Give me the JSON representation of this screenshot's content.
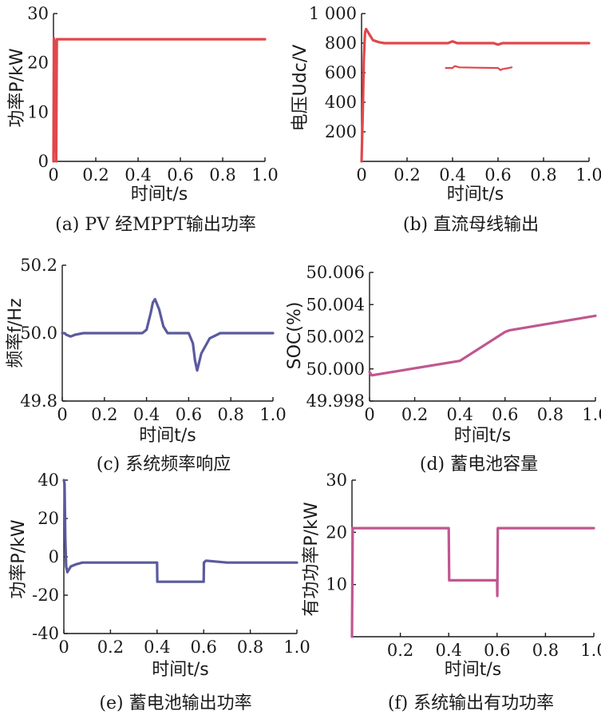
{
  "chart_data": [
    {
      "id": "a",
      "type": "line",
      "caption": "(a) PV 经MPPT输出功率",
      "xlabel": "时间t/s",
      "ylabel": "功率P/kW",
      "xlim": [
        0,
        1.0
      ],
      "ylim": [
        0,
        30
      ],
      "xticks": [
        "0",
        "0.2",
        "0.4",
        "0.6",
        "0.8",
        "1.0"
      ],
      "yticks": [
        "0",
        "10",
        "20",
        "30"
      ],
      "grid": false,
      "color": "#e0474c",
      "series": [
        {
          "x": [
            0,
            0.002,
            0.005,
            0.007,
            0.009,
            0.011,
            0.013,
            0.016,
            0.02,
            0.03,
            0.1,
            0.3,
            0.5,
            0.7,
            0.9,
            1.0
          ],
          "y": [
            0,
            25,
            5,
            24.5,
            2,
            23,
            0,
            24.8,
            24.8,
            24.8,
            24.8,
            24.8,
            24.8,
            24.8,
            24.8,
            24.8
          ]
        }
      ]
    },
    {
      "id": "b",
      "type": "line",
      "caption": "(b) 直流母线输出",
      "xlabel": "时间t/s",
      "ylabel": "电压Udc/V",
      "xlim": [
        0,
        1.0
      ],
      "ylim": [
        0,
        1000
      ],
      "xticks": [
        "0",
        "0.2",
        "0.4",
        "0.6",
        "0.8",
        "1.0"
      ],
      "yticks": [
        "200",
        "400",
        "600",
        "800",
        "1 000"
      ],
      "grid": false,
      "color": "#e0474c",
      "series": [
        {
          "x": [
            0,
            0.005,
            0.01,
            0.015,
            0.02,
            0.03,
            0.05,
            0.08,
            0.1,
            0.2,
            0.38,
            0.4,
            0.42,
            0.5,
            0.58,
            0.6,
            0.62,
            0.7,
            0.8,
            0.9,
            1.0
          ],
          "y": [
            0,
            300,
            700,
            870,
            895,
            870,
            820,
            805,
            800,
            800,
            800,
            812,
            800,
            800,
            800,
            790,
            800,
            800,
            800,
            800,
            800
          ]
        },
        {
          "x": [
            0.37,
            0.4,
            0.41,
            0.43,
            0.5,
            0.6,
            0.61,
            0.62,
            0.64,
            0.66
          ],
          "y": [
            632,
            632,
            645,
            636,
            634,
            632,
            618,
            625,
            630,
            636
          ]
        }
      ]
    },
    {
      "id": "c",
      "type": "line",
      "caption": "(c) 系统频率响应",
      "xlabel": "时间t/s",
      "ylabel": "频率f/Hz",
      "xlim": [
        0,
        1.0
      ],
      "ylim": [
        49.8,
        50.2
      ],
      "xticks": [
        "0",
        "0.2",
        "0.4",
        "0.6",
        "0.8",
        "1.0"
      ],
      "yticks": [
        "49.8",
        "50.0",
        "50.2"
      ],
      "grid": false,
      "color": "#5a5a9e",
      "series": [
        {
          "x": [
            0,
            0.01,
            0.02,
            0.04,
            0.06,
            0.1,
            0.38,
            0.4,
            0.42,
            0.43,
            0.44,
            0.46,
            0.48,
            0.5,
            0.6,
            0.62,
            0.63,
            0.64,
            0.66,
            0.7,
            0.75,
            0.8,
            0.9,
            1.0
          ],
          "y": [
            50.0,
            50.0,
            49.995,
            49.99,
            49.995,
            50.0,
            50.0,
            50.01,
            50.06,
            50.09,
            50.1,
            50.07,
            50.02,
            50.0,
            50.0,
            49.97,
            49.92,
            49.89,
            49.94,
            49.985,
            50.0,
            50.0,
            50.0,
            50.0
          ]
        }
      ]
    },
    {
      "id": "d",
      "type": "line",
      "caption": "(d) 蓄电池容量",
      "xlabel": "时间t/s",
      "ylabel": "SOC(%)",
      "xlim": [
        0,
        1.0
      ],
      "ylim": [
        49.998,
        50.006
      ],
      "xticks": [
        "0",
        "0.2",
        "0.4",
        "0.6",
        "0.8",
        "1.0"
      ],
      "yticks": [
        "49.998",
        "50.000",
        "50.002",
        "50.004",
        "50.006"
      ],
      "grid": false,
      "color": "#c0578f",
      "series": [
        {
          "x": [
            0,
            0.01,
            0.4,
            0.6,
            0.62,
            1.0
          ],
          "y": [
            49.9998,
            49.9996,
            50.0005,
            50.0023,
            50.0024,
            50.0033
          ]
        }
      ]
    },
    {
      "id": "e",
      "type": "line",
      "caption": "(e) 蓄电池输出功率",
      "xlabel": "时间t/s",
      "ylabel": "功率P/kW",
      "xlim": [
        0,
        1.0
      ],
      "ylim": [
        -40,
        40
      ],
      "xticks": [
        "0",
        "0.2",
        "0.4",
        "0.6",
        "0.8",
        "1.0"
      ],
      "yticks": [
        "-40",
        "-20",
        "0",
        "20",
        "40"
      ],
      "grid": false,
      "color": "#5a5a9e",
      "series": [
        {
          "x": [
            0,
            0.003,
            0.006,
            0.01,
            0.015,
            0.02,
            0.03,
            0.05,
            0.08,
            0.1,
            0.4,
            0.401,
            0.6,
            0.601,
            0.61,
            0.7,
            0.8,
            0.9,
            1.0
          ],
          "y": [
            40,
            38,
            10,
            -5,
            -8,
            -7,
            -5,
            -4,
            -3,
            -3,
            -3,
            -13,
            -13,
            -3,
            -2,
            -3,
            -3,
            -3,
            -3
          ]
        }
      ]
    },
    {
      "id": "f",
      "type": "line",
      "caption": "(f) 系统输出有功功率",
      "xlabel": "时间t/s",
      "ylabel": "有功功率P/kW",
      "xlim": [
        0,
        1.0
      ],
      "ylim": [
        0,
        30
      ],
      "xticks": [
        "0.2",
        "0.4",
        "0.6",
        "0.8",
        "1.0"
      ],
      "yticks": [
        "10",
        "20",
        "30"
      ],
      "grid": false,
      "color": "#c0578f",
      "series": [
        {
          "x": [
            0,
            0.003,
            0.006,
            0.1,
            0.4,
            0.402,
            0.6,
            0.601,
            0.603,
            0.606,
            0.7,
            0.8,
            0.9,
            1.0
          ],
          "y": [
            0,
            20.8,
            20.8,
            20.8,
            20.8,
            10.8,
            10.8,
            7.8,
            20.8,
            20.8,
            20.8,
            20.8,
            20.8,
            20.8
          ]
        }
      ]
    }
  ]
}
